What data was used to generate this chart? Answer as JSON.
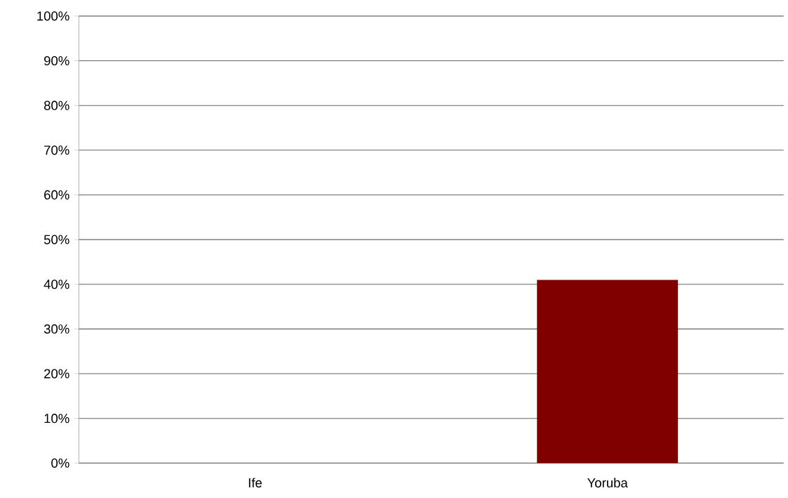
{
  "chart_data": {
    "type": "bar",
    "categories": [
      "Ife",
      "Yoruba"
    ],
    "values": [
      0,
      41
    ],
    "color": "#800000",
    "ylim": [
      0,
      100
    ],
    "yticks": [
      {
        "value": 0,
        "label": "0%"
      },
      {
        "value": 10,
        "label": "10%"
      },
      {
        "value": 20,
        "label": "20%"
      },
      {
        "value": 30,
        "label": "30%"
      },
      {
        "value": 40,
        "label": "40%"
      },
      {
        "value": 50,
        "label": "50%"
      },
      {
        "value": 60,
        "label": "60%"
      },
      {
        "value": 70,
        "label": "70%"
      },
      {
        "value": 80,
        "label": "80%"
      },
      {
        "value": 90,
        "label": "90%"
      },
      {
        "value": 100,
        "label": "100%"
      }
    ],
    "grid": "y"
  }
}
